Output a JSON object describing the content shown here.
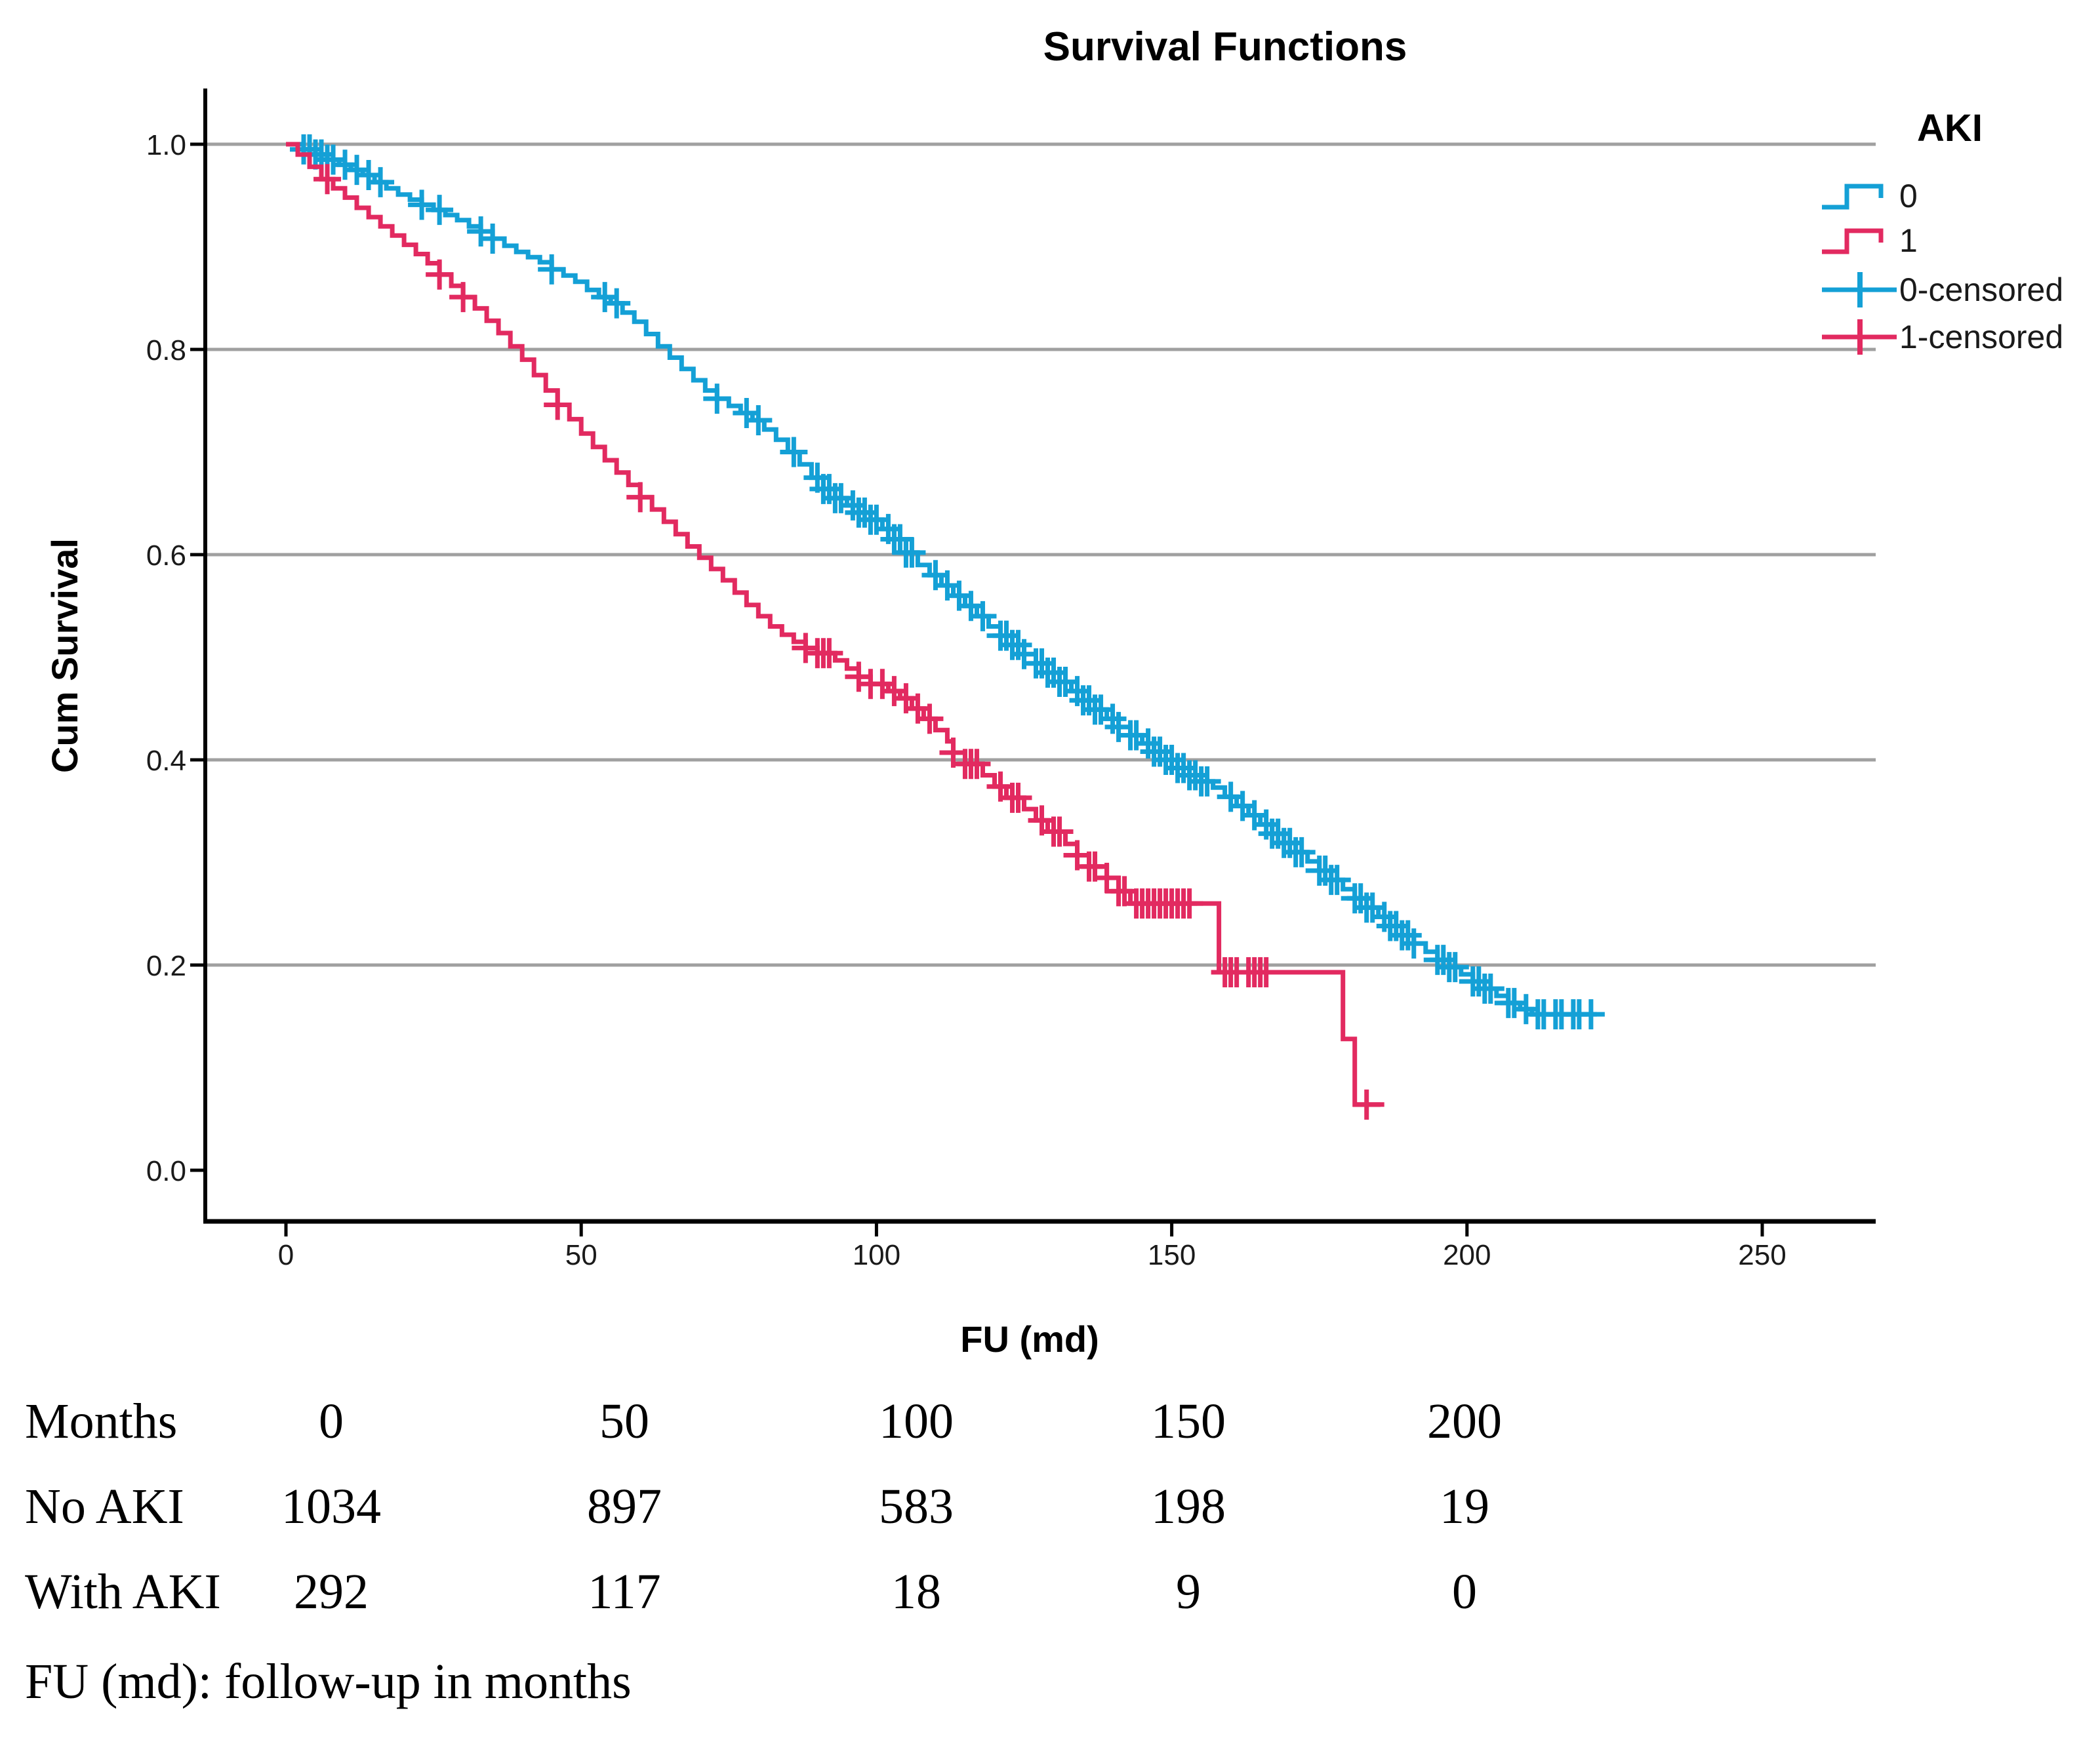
{
  "page": {
    "background": "#ffffff"
  },
  "chart_data": {
    "type": "line",
    "subtype": "kaplan-meier-step",
    "title": "Survival Functions",
    "xlabel": "FU (md)",
    "ylabel": "Cum Survival",
    "grid": "horizontal-only",
    "colors": {
      "grid": "#a0a0a0",
      "axis": "#000000",
      "group0": "#14a0d6",
      "group1": "#e22a60"
    },
    "xlim": [
      -14,
      269
    ],
    "ylim": [
      -0.05,
      1.054
    ],
    "x_ticks": [
      {
        "v": 0,
        "label": "0"
      },
      {
        "v": 50,
        "label": "50"
      },
      {
        "v": 100,
        "label": "100"
      },
      {
        "v": 150,
        "label": "150"
      },
      {
        "v": 200,
        "label": "200"
      },
      {
        "v": 250,
        "label": "250"
      }
    ],
    "y_ticks": [
      {
        "v": 0.0,
        "label": "0.0"
      },
      {
        "v": 0.2,
        "label": "0.2"
      },
      {
        "v": 0.4,
        "label": "0.4"
      },
      {
        "v": 0.6,
        "label": "0.6"
      },
      {
        "v": 0.8,
        "label": "0.8"
      },
      {
        "v": 1.0,
        "label": "1.0"
      }
    ],
    "legend": {
      "title": "AKI",
      "position": "right-top",
      "entries": [
        {
          "label": "0",
          "glyph": "step-line",
          "series": 0
        },
        {
          "label": "1",
          "glyph": "step-line",
          "series": 1
        },
        {
          "label": "0-censored",
          "glyph": "plus",
          "series": 0
        },
        {
          "label": "1-censored",
          "glyph": "plus",
          "series": 1
        }
      ]
    },
    "series": [
      {
        "name": "0",
        "group": "No AKI",
        "color": "#14a0d6",
        "end_t": 222,
        "steps": [
          [
            0,
            1.0
          ],
          [
            3,
            0.995
          ],
          [
            5,
            0.99
          ],
          [
            7,
            0.985
          ],
          [
            9,
            0.98
          ],
          [
            11,
            0.975
          ],
          [
            13,
            0.97
          ],
          [
            15,
            0.963
          ],
          [
            17,
            0.957
          ],
          [
            19,
            0.951
          ],
          [
            21,
            0.946
          ],
          [
            23,
            0.941
          ],
          [
            25,
            0.936
          ],
          [
            27,
            0.931
          ],
          [
            29,
            0.926
          ],
          [
            31,
            0.92
          ],
          [
            33,
            0.915
          ],
          [
            35,
            0.908
          ],
          [
            37,
            0.901
          ],
          [
            39,
            0.895
          ],
          [
            41,
            0.89
          ],
          [
            43,
            0.885
          ],
          [
            45,
            0.878
          ],
          [
            47,
            0.872
          ],
          [
            49,
            0.866
          ],
          [
            51,
            0.858
          ],
          [
            53,
            0.851
          ],
          [
            55,
            0.845
          ],
          [
            57,
            0.836
          ],
          [
            59,
            0.827
          ],
          [
            61,
            0.815
          ],
          [
            63,
            0.803
          ],
          [
            65,
            0.792
          ],
          [
            67,
            0.781
          ],
          [
            69,
            0.77
          ],
          [
            71,
            0.76
          ],
          [
            73,
            0.752
          ],
          [
            75,
            0.745
          ],
          [
            77,
            0.738
          ],
          [
            79,
            0.731
          ],
          [
            81,
            0.722
          ],
          [
            83,
            0.712
          ],
          [
            85,
            0.7
          ],
          [
            87,
            0.688
          ],
          [
            89,
            0.675
          ],
          [
            91,
            0.664
          ],
          [
            93,
            0.655
          ],
          [
            95,
            0.648
          ],
          [
            97,
            0.641
          ],
          [
            99,
            0.634
          ],
          [
            101,
            0.625
          ],
          [
            103,
            0.615
          ],
          [
            105,
            0.602
          ],
          [
            107,
            0.59
          ],
          [
            109,
            0.58
          ],
          [
            111,
            0.57
          ],
          [
            113,
            0.56
          ],
          [
            115,
            0.55
          ],
          [
            117,
            0.54
          ],
          [
            119,
            0.53
          ],
          [
            121,
            0.521
          ],
          [
            123,
            0.512
          ],
          [
            125,
            0.503
          ],
          [
            127,
            0.494
          ],
          [
            129,
            0.485
          ],
          [
            131,
            0.476
          ],
          [
            133,
            0.467
          ],
          [
            135,
            0.458
          ],
          [
            137,
            0.449
          ],
          [
            139,
            0.44
          ],
          [
            141,
            0.432
          ],
          [
            143,
            0.424
          ],
          [
            145,
            0.416
          ],
          [
            147,
            0.408
          ],
          [
            149,
            0.4
          ],
          [
            151,
            0.392
          ],
          [
            153,
            0.385
          ],
          [
            155,
            0.379
          ],
          [
            157,
            0.373
          ],
          [
            159,
            0.364
          ],
          [
            161,
            0.355
          ],
          [
            163,
            0.346
          ],
          [
            165,
            0.337
          ],
          [
            167,
            0.328
          ],
          [
            169,
            0.319
          ],
          [
            171,
            0.31
          ],
          [
            173,
            0.301
          ],
          [
            175,
            0.292
          ],
          [
            177,
            0.283
          ],
          [
            179,
            0.274
          ],
          [
            181,
            0.265
          ],
          [
            183,
            0.256
          ],
          [
            185,
            0.247
          ],
          [
            187,
            0.238
          ],
          [
            189,
            0.229
          ],
          [
            191,
            0.221
          ],
          [
            193,
            0.213
          ],
          [
            195,
            0.205
          ],
          [
            197,
            0.198
          ],
          [
            199,
            0.191
          ],
          [
            201,
            0.184
          ],
          [
            203,
            0.177
          ],
          [
            205,
            0.17
          ],
          [
            207,
            0.163
          ],
          [
            209,
            0.157
          ],
          [
            211,
            0.152
          ]
        ],
        "censor_times": [
          3,
          4,
          5,
          6,
          7,
          8,
          10,
          12,
          14,
          16,
          23,
          26,
          33,
          35,
          45,
          54,
          56,
          73,
          78,
          80,
          86,
          90,
          91,
          92,
          93,
          94,
          96,
          97,
          98,
          99,
          100,
          102,
          103,
          104,
          105,
          106,
          110,
          112,
          114,
          116,
          118,
          121,
          122,
          123,
          124,
          125,
          127,
          128,
          129,
          130,
          131,
          132,
          134,
          135,
          136,
          137,
          138,
          140,
          141,
          143,
          144,
          146,
          147,
          148,
          149,
          150,
          151,
          152,
          153,
          154,
          155,
          156,
          160,
          162,
          164,
          166,
          167,
          168,
          169,
          170,
          171,
          172,
          175,
          176,
          177,
          178,
          181,
          182,
          183,
          184,
          186,
          187,
          188,
          189,
          190,
          191,
          195,
          196,
          197,
          198,
          201,
          202,
          203,
          204,
          207,
          208,
          210,
          212,
          213,
          215,
          216,
          218,
          219,
          221
        ]
      },
      {
        "name": "1",
        "group": "With AKI",
        "color": "#e22a60",
        "end_t": 186,
        "steps": [
          [
            0,
            1.0
          ],
          [
            2,
            0.99
          ],
          [
            4,
            0.978
          ],
          [
            6,
            0.966
          ],
          [
            8,
            0.957
          ],
          [
            10,
            0.948
          ],
          [
            12,
            0.938
          ],
          [
            14,
            0.929
          ],
          [
            16,
            0.92
          ],
          [
            18,
            0.911
          ],
          [
            20,
            0.902
          ],
          [
            22,
            0.893
          ],
          [
            24,
            0.884
          ],
          [
            26,
            0.873
          ],
          [
            28,
            0.862
          ],
          [
            30,
            0.851
          ],
          [
            32,
            0.84
          ],
          [
            34,
            0.828
          ],
          [
            36,
            0.816
          ],
          [
            38,
            0.803
          ],
          [
            40,
            0.79
          ],
          [
            42,
            0.775
          ],
          [
            44,
            0.76
          ],
          [
            46,
            0.746
          ],
          [
            48,
            0.732
          ],
          [
            50,
            0.718
          ],
          [
            52,
            0.705
          ],
          [
            54,
            0.692
          ],
          [
            56,
            0.68
          ],
          [
            58,
            0.668
          ],
          [
            60,
            0.656
          ],
          [
            62,
            0.644
          ],
          [
            64,
            0.632
          ],
          [
            66,
            0.62
          ],
          [
            68,
            0.608
          ],
          [
            70,
            0.597
          ],
          [
            72,
            0.586
          ],
          [
            74,
            0.575
          ],
          [
            76,
            0.563
          ],
          [
            78,
            0.551
          ],
          [
            80,
            0.54
          ],
          [
            82,
            0.53
          ],
          [
            84,
            0.522
          ],
          [
            86,
            0.515
          ],
          [
            88,
            0.509
          ],
          [
            90,
            0.504
          ],
          [
            93,
            0.497
          ],
          [
            95,
            0.489
          ],
          [
            97,
            0.481
          ],
          [
            99,
            0.474
          ],
          [
            102,
            0.467
          ],
          [
            104,
            0.46
          ],
          [
            106,
            0.45
          ],
          [
            108,
            0.44
          ],
          [
            110,
            0.429
          ],
          [
            112,
            0.418
          ],
          [
            113,
            0.407
          ],
          [
            115,
            0.396
          ],
          [
            118,
            0.385
          ],
          [
            120,
            0.374
          ],
          [
            122,
            0.363
          ],
          [
            125,
            0.352
          ],
          [
            127,
            0.341
          ],
          [
            129,
            0.33
          ],
          [
            132,
            0.318
          ],
          [
            134,
            0.307
          ],
          [
            136,
            0.296
          ],
          [
            139,
            0.285
          ],
          [
            141,
            0.272
          ],
          [
            143,
            0.26
          ],
          [
            158,
            0.193
          ],
          [
            179,
            0.128
          ],
          [
            181,
            0.064
          ]
        ],
        "censor_times": [
          7,
          26,
          30,
          46,
          60,
          88,
          90,
          91,
          92,
          97,
          99,
          101,
          103,
          105,
          107,
          109,
          113,
          115,
          116,
          117,
          121,
          123,
          124,
          128,
          130,
          131,
          134,
          136,
          137,
          139,
          141,
          142,
          144,
          145,
          146,
          147,
          148,
          149,
          150,
          151,
          152,
          153,
          159,
          160,
          161,
          163,
          164,
          165,
          166,
          183
        ]
      }
    ],
    "risk_table": {
      "header": {
        "label": "Months",
        "values": [
          "0",
          "50",
          "100",
          "150",
          "200"
        ]
      },
      "rows": [
        {
          "label": "No AKI",
          "values": [
            "1034",
            "897",
            "583",
            "198",
            "19"
          ]
        },
        {
          "label": "With AKI",
          "values": [
            "292",
            "117",
            "18",
            "9",
            "0"
          ]
        }
      ]
    },
    "footnote": "FU (md): follow-up in months"
  }
}
